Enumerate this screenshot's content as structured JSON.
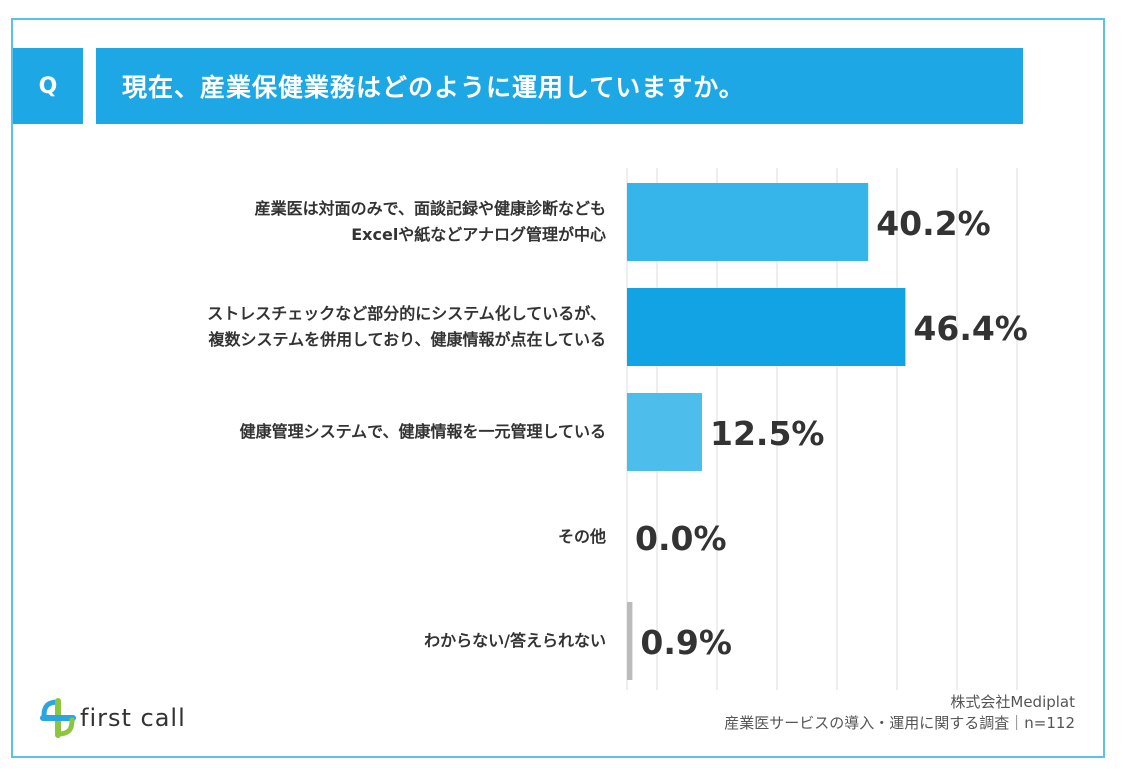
{
  "header": {
    "q_label": "Q",
    "question": "現在、産業保健業務はどのように運用していますか。"
  },
  "chart_data": {
    "type": "bar",
    "orientation": "horizontal",
    "title": "現在、産業保健業務はどのように運用していますか。",
    "xlim": [
      0,
      70
    ],
    "grid_step": 5,
    "value_suffix": "%",
    "categories": [
      [
        "産業医は対面のみで、面談記録や健康診断なども",
        "Excelや紙などアナログ管理が中心"
      ],
      [
        "ストレスチェックなど部分的にシステム化しているが、",
        "複数システムを併用しており、健康情報が点在している"
      ],
      [
        "健康管理システムで、健康情報を一元管理している"
      ],
      [
        "その他"
      ],
      [
        "わからない/答えられない"
      ]
    ],
    "values": [
      40.2,
      46.4,
      12.5,
      0.0,
      0.9
    ],
    "value_labels": [
      "40.2%",
      "46.4%",
      "12.5%",
      "0.0%",
      "0.9%"
    ],
    "colors": [
      "#35b5ea",
      "#11a3e3",
      "#4dbdec",
      "#bbbbbb",
      "#bbbbbb"
    ]
  },
  "footer": {
    "logo_text": "first call",
    "company": "株式会社Mediplat",
    "survey": "産業医サービスの導入・運用に関する調査｜n=112"
  }
}
